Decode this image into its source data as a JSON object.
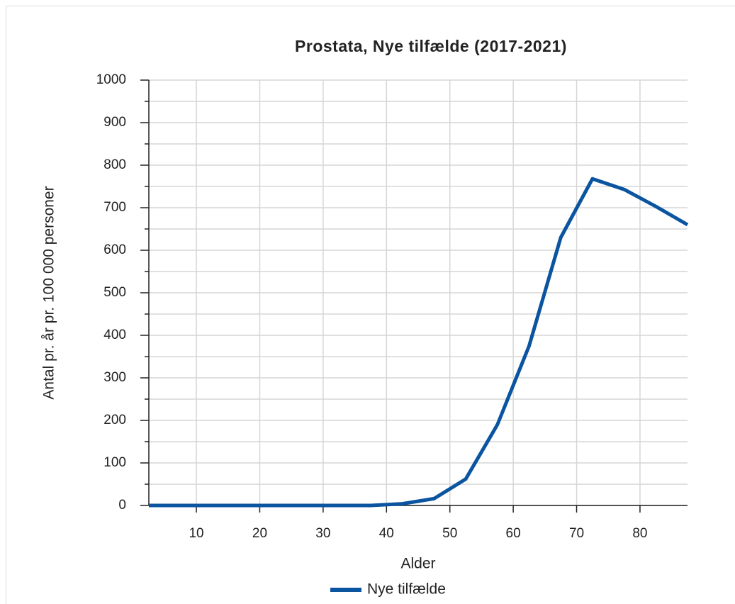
{
  "chart_data": {
    "type": "line",
    "title": "Prostata, Nye tilfælde (2017-2021)",
    "x_label": "Alder",
    "y_label": "Antal pr. år pr. 100 000 personer",
    "x": [
      2.5,
      7.5,
      12.5,
      17.5,
      22.5,
      27.5,
      32.5,
      37.5,
      42.5,
      47.5,
      52.5,
      57.5,
      62.5,
      67.5,
      72.5,
      77.5,
      82.5,
      87.5
    ],
    "series": [
      {
        "name": "Nye tilfælde",
        "color": "#0a54a0",
        "values": [
          0,
          0,
          0,
          0,
          0,
          0,
          0,
          0,
          4,
          16,
          62,
          190,
          375,
          630,
          768,
          743,
          703,
          660
        ]
      }
    ],
    "xlim": [
      2.5,
      87.5
    ],
    "xticks": [
      10,
      20,
      30,
      40,
      50,
      60,
      70,
      80
    ],
    "ylim": [
      0,
      1000
    ],
    "yticks": [
      0,
      100,
      200,
      300,
      400,
      500,
      600,
      700,
      800,
      900,
      1000
    ],
    "yminorticks": [
      50,
      150,
      250,
      350,
      450,
      550,
      650,
      750,
      850,
      950
    ],
    "grid": true,
    "legend": "bottom"
  }
}
